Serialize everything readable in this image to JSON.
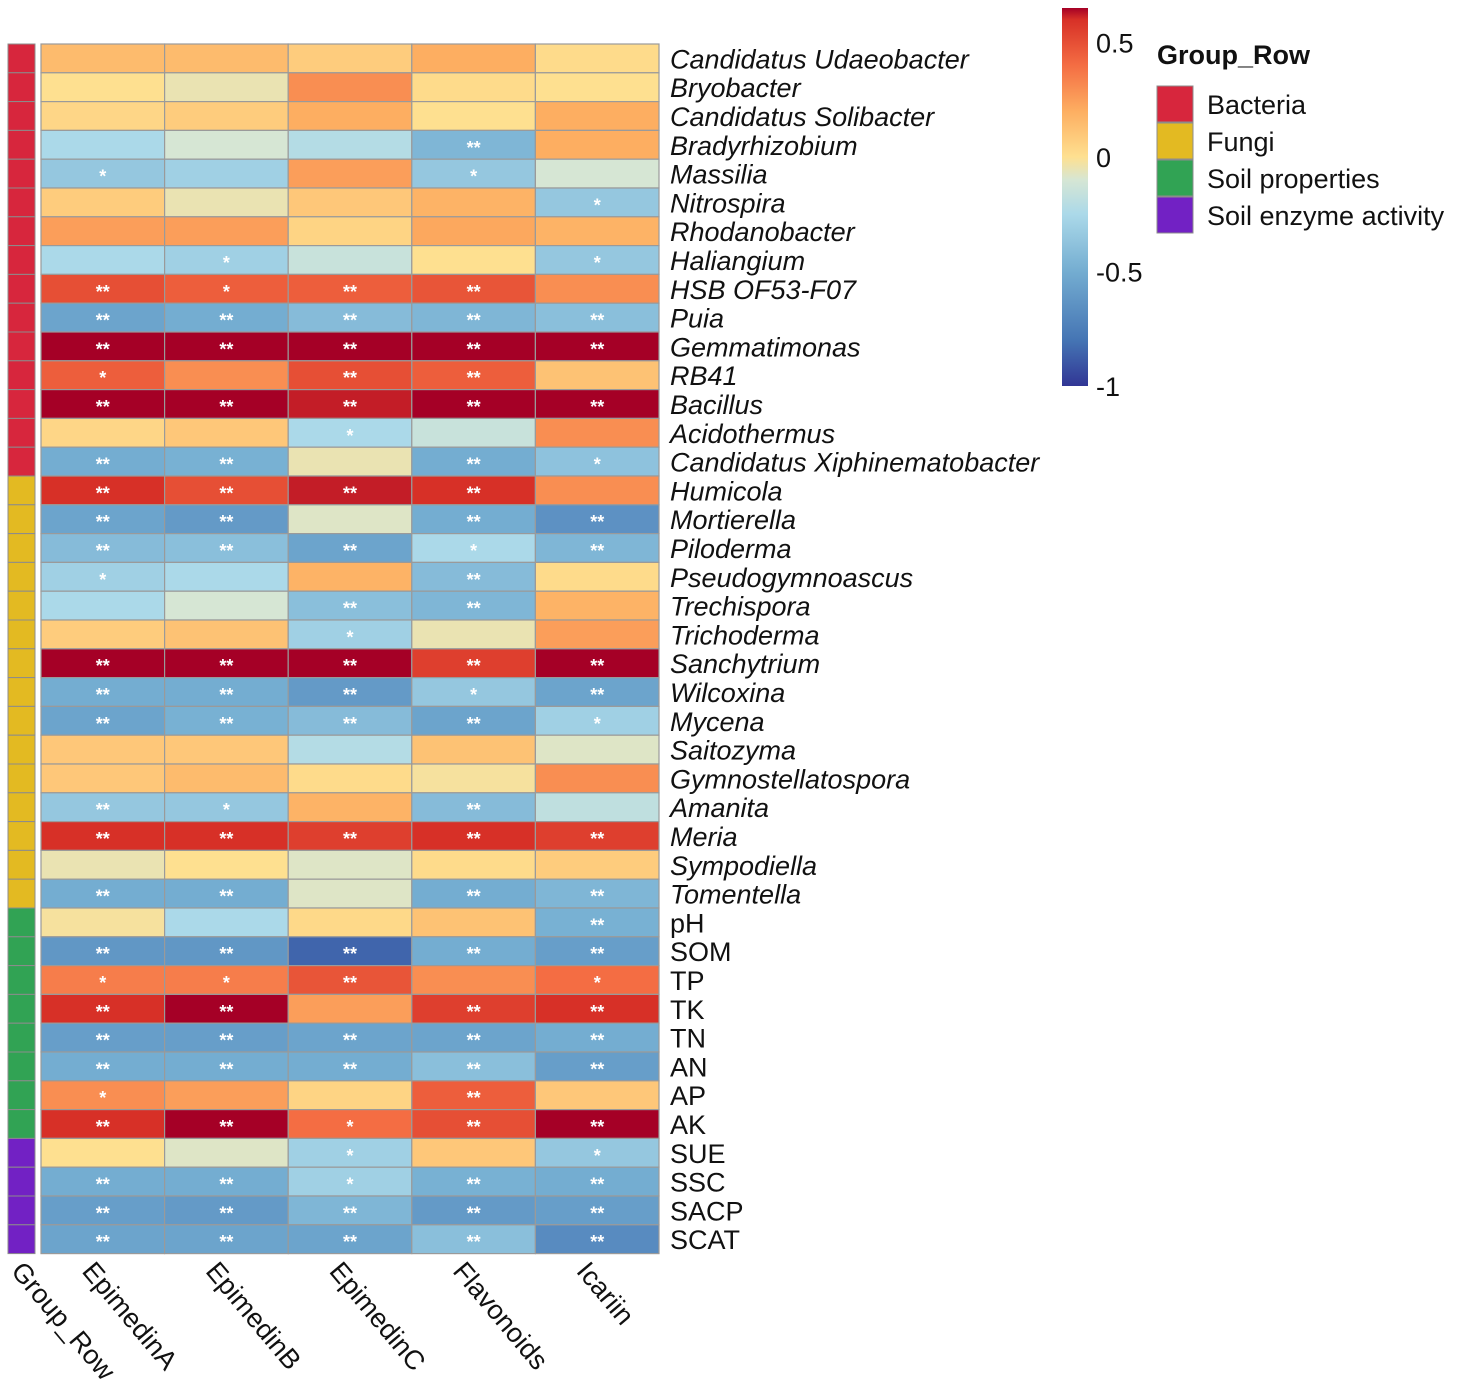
{
  "chart_data": {
    "type": "heatmap",
    "columns": [
      "EpimedinA",
      "EpimedinB",
      "EpimedinC",
      "Flavonoids",
      "Icariin"
    ],
    "annotation_column_label": "Group_Row",
    "rows": [
      {
        "name": "Candidatus Udaeobacter",
        "italic": true,
        "group": "Bacteria",
        "values": [
          0.15,
          0.15,
          0.08,
          0.2,
          0.02
        ],
        "sig": [
          "",
          "",
          "",
          "",
          ""
        ]
      },
      {
        "name": "Bryobacter",
        "italic": true,
        "group": "Bacteria",
        "values": [
          0.0,
          -0.05,
          0.3,
          0.02,
          0.0
        ],
        "sig": [
          "",
          "",
          "",
          "",
          ""
        ]
      },
      {
        "name": "Candidatus Solibacter",
        "italic": true,
        "group": "Bacteria",
        "values": [
          0.04,
          0.08,
          0.2,
          0.0,
          0.2
        ],
        "sig": [
          "",
          "",
          "",
          "",
          ""
        ]
      },
      {
        "name": "Bradyrhizobium",
        "italic": true,
        "group": "Bacteria",
        "values": [
          -0.25,
          -0.1,
          -0.22,
          -0.45,
          0.2
        ],
        "sig": [
          "",
          "",
          "",
          "**",
          ""
        ]
      },
      {
        "name": "Massilia",
        "italic": true,
        "group": "Bacteria",
        "values": [
          -0.35,
          -0.3,
          0.25,
          -0.35,
          -0.1
        ],
        "sig": [
          "*",
          "",
          "",
          "*",
          ""
        ]
      },
      {
        "name": "Nitrospira",
        "italic": true,
        "group": "Bacteria",
        "values": [
          0.08,
          -0.05,
          0.1,
          0.18,
          -0.35
        ],
        "sig": [
          "",
          "",
          "",
          "",
          "*"
        ]
      },
      {
        "name": "Rhodanobacter",
        "italic": true,
        "group": "Bacteria",
        "values": [
          0.25,
          0.25,
          0.05,
          0.22,
          0.18
        ],
        "sig": [
          "",
          "",
          "",
          "",
          ""
        ]
      },
      {
        "name": "Haliangium",
        "italic": true,
        "group": "Bacteria",
        "values": [
          -0.25,
          -0.3,
          -0.15,
          0.0,
          -0.35
        ],
        "sig": [
          "",
          "*",
          "",
          "",
          "*"
        ]
      },
      {
        "name": "HSB OF53-F07",
        "italic": true,
        "group": "Bacteria",
        "values": [
          0.5,
          0.45,
          0.45,
          0.48,
          0.3
        ],
        "sig": [
          "**",
          "*",
          "**",
          "**",
          ""
        ]
      },
      {
        "name": "Puia",
        "italic": true,
        "group": "Bacteria",
        "values": [
          -0.55,
          -0.5,
          -0.42,
          -0.45,
          -0.4
        ],
        "sig": [
          "**",
          "**",
          "**",
          "**",
          "**"
        ]
      },
      {
        "name": "Gemmatimonas",
        "italic": true,
        "group": "Bacteria",
        "values": [
          0.7,
          0.72,
          0.65,
          0.7,
          0.72
        ],
        "sig": [
          "**",
          "**",
          "**",
          "**",
          "**"
        ]
      },
      {
        "name": "RB41",
        "italic": true,
        "group": "Bacteria",
        "values": [
          0.45,
          0.3,
          0.5,
          0.45,
          0.12
        ],
        "sig": [
          "*",
          "",
          "**",
          "**",
          ""
        ]
      },
      {
        "name": "Bacillus",
        "italic": true,
        "group": "Bacteria",
        "values": [
          0.78,
          0.78,
          0.62,
          0.78,
          0.68
        ],
        "sig": [
          "**",
          "**",
          "**",
          "**",
          "**"
        ]
      },
      {
        "name": "Acidothermus",
        "italic": true,
        "group": "Bacteria",
        "values": [
          0.04,
          0.1,
          -0.25,
          -0.15,
          0.3
        ],
        "sig": [
          "",
          "",
          "*",
          "",
          ""
        ]
      },
      {
        "name": "Candidatus Xiphinematobacter",
        "italic": true,
        "group": "Bacteria",
        "values": [
          -0.5,
          -0.48,
          -0.05,
          -0.5,
          -0.38
        ],
        "sig": [
          "**",
          "**",
          "",
          "**",
          "*"
        ]
      },
      {
        "name": "Humicola",
        "italic": true,
        "group": "Fungi",
        "values": [
          0.6,
          0.5,
          0.62,
          0.6,
          0.3
        ],
        "sig": [
          "**",
          "**",
          "**",
          "**",
          ""
        ]
      },
      {
        "name": "Mortierella",
        "italic": true,
        "group": "Fungi",
        "values": [
          -0.55,
          -0.6,
          -0.08,
          -0.5,
          -0.65
        ],
        "sig": [
          "**",
          "**",
          "",
          "**",
          "**"
        ]
      },
      {
        "name": "Piloderma",
        "italic": true,
        "group": "Fungi",
        "values": [
          -0.42,
          -0.4,
          -0.55,
          -0.25,
          -0.45
        ],
        "sig": [
          "**",
          "**",
          "**",
          "*",
          "**"
        ]
      },
      {
        "name": "Pseudogymnoascus",
        "italic": true,
        "group": "Fungi",
        "values": [
          -0.3,
          -0.25,
          0.18,
          -0.42,
          0.02
        ],
        "sig": [
          "*",
          "",
          "",
          "**",
          ""
        ]
      },
      {
        "name": "Trechispora",
        "italic": true,
        "group": "Fungi",
        "values": [
          -0.25,
          -0.1,
          -0.4,
          -0.45,
          0.18
        ],
        "sig": [
          "",
          "",
          "**",
          "**",
          ""
        ]
      },
      {
        "name": "Trichoderma",
        "italic": true,
        "group": "Fungi",
        "values": [
          0.08,
          0.12,
          -0.3,
          -0.05,
          0.25
        ],
        "sig": [
          "",
          "",
          "*",
          "",
          ""
        ]
      },
      {
        "name": "Sanchytrium",
        "italic": true,
        "group": "Fungi",
        "values": [
          0.65,
          0.68,
          0.65,
          0.55,
          0.75
        ],
        "sig": [
          "**",
          "**",
          "**",
          "**",
          "**"
        ]
      },
      {
        "name": "Wilcoxina",
        "italic": true,
        "group": "Fungi",
        "values": [
          -0.5,
          -0.5,
          -0.6,
          -0.35,
          -0.55
        ],
        "sig": [
          "**",
          "**",
          "**",
          "*",
          "**"
        ]
      },
      {
        "name": "Mycena",
        "italic": true,
        "group": "Fungi",
        "values": [
          -0.55,
          -0.48,
          -0.42,
          -0.55,
          -0.3
        ],
        "sig": [
          "**",
          "**",
          "**",
          "**",
          "*"
        ]
      },
      {
        "name": "Saitozyma",
        "italic": true,
        "group": "Fungi",
        "values": [
          0.1,
          0.1,
          -0.22,
          0.12,
          -0.08
        ],
        "sig": [
          "",
          "",
          "",
          "",
          ""
        ]
      },
      {
        "name": "Gymnostellatospora",
        "italic": true,
        "group": "Fungi",
        "values": [
          0.1,
          0.15,
          0.02,
          -0.02,
          0.3
        ],
        "sig": [
          "",
          "",
          "",
          "",
          ""
        ]
      },
      {
        "name": "Amanita",
        "italic": true,
        "group": "Fungi",
        "values": [
          -0.35,
          -0.35,
          0.18,
          -0.42,
          -0.18
        ],
        "sig": [
          "**",
          "*",
          "",
          "**",
          ""
        ]
      },
      {
        "name": "Meria",
        "italic": true,
        "group": "Fungi",
        "values": [
          0.6,
          0.6,
          0.55,
          0.6,
          0.55
        ],
        "sig": [
          "**",
          "**",
          "**",
          "**",
          "**"
        ]
      },
      {
        "name": "Sympodiella",
        "italic": true,
        "group": "Fungi",
        "values": [
          -0.05,
          0.0,
          -0.08,
          0.02,
          0.08
        ],
        "sig": [
          "",
          "",
          "",
          "",
          ""
        ]
      },
      {
        "name": "Tomentella",
        "italic": true,
        "group": "Fungi",
        "values": [
          -0.5,
          -0.5,
          -0.08,
          -0.5,
          -0.45
        ],
        "sig": [
          "**",
          "**",
          "",
          "**",
          "**"
        ]
      },
      {
        "name": "pH",
        "italic": false,
        "group": "Soil properties",
        "values": [
          -0.02,
          -0.25,
          0.03,
          0.12,
          -0.48
        ],
        "sig": [
          "",
          "",
          "",
          "",
          "**"
        ]
      },
      {
        "name": "SOM",
        "italic": false,
        "group": "Soil properties",
        "values": [
          -0.62,
          -0.62,
          -0.85,
          -0.5,
          -0.58
        ],
        "sig": [
          "**",
          "**",
          "**",
          "**",
          "**"
        ]
      },
      {
        "name": "TP",
        "italic": false,
        "group": "Soil properties",
        "values": [
          0.35,
          0.35,
          0.48,
          0.3,
          0.4
        ],
        "sig": [
          "*",
          "*",
          "**",
          "",
          "*"
        ]
      },
      {
        "name": "TK",
        "italic": false,
        "group": "Soil properties",
        "values": [
          0.6,
          0.65,
          0.25,
          0.55,
          0.6
        ],
        "sig": [
          "**",
          "**",
          "",
          "**",
          "**"
        ]
      },
      {
        "name": "TN",
        "italic": false,
        "group": "Soil properties",
        "values": [
          -0.58,
          -0.58,
          -0.55,
          -0.55,
          -0.5
        ],
        "sig": [
          "**",
          "**",
          "**",
          "**",
          "**"
        ]
      },
      {
        "name": "AN",
        "italic": false,
        "group": "Soil properties",
        "values": [
          -0.5,
          -0.5,
          -0.5,
          -0.4,
          -0.58
        ],
        "sig": [
          "**",
          "**",
          "**",
          "**",
          "**"
        ]
      },
      {
        "name": "AP",
        "italic": false,
        "group": "Soil properties",
        "values": [
          0.3,
          0.25,
          0.05,
          0.45,
          0.1
        ],
        "sig": [
          "*",
          "",
          "",
          "**",
          ""
        ]
      },
      {
        "name": "AK",
        "italic": false,
        "group": "Soil properties",
        "values": [
          0.6,
          0.68,
          0.4,
          0.5,
          0.7
        ],
        "sig": [
          "**",
          "**",
          "*",
          "**",
          "**"
        ]
      },
      {
        "name": "SUE",
        "italic": false,
        "group": "Soil enzyme activity",
        "values": [
          0.0,
          -0.08,
          -0.3,
          0.1,
          -0.35
        ],
        "sig": [
          "",
          "",
          "*",
          "",
          "*"
        ]
      },
      {
        "name": "SSC",
        "italic": false,
        "group": "Soil enzyme activity",
        "values": [
          -0.5,
          -0.5,
          -0.3,
          -0.48,
          -0.5
        ],
        "sig": [
          "**",
          "**",
          "*",
          "**",
          "**"
        ]
      },
      {
        "name": "SACP",
        "italic": false,
        "group": "Soil enzyme activity",
        "values": [
          -0.58,
          -0.6,
          -0.45,
          -0.6,
          -0.58
        ],
        "sig": [
          "**",
          "**",
          "**",
          "**",
          "**"
        ]
      },
      {
        "name": "SCAT",
        "italic": false,
        "group": "Soil enzyme activity",
        "values": [
          -0.55,
          -0.55,
          -0.55,
          -0.4,
          -0.68
        ],
        "sig": [
          "**",
          "**",
          "**",
          "**",
          "**"
        ]
      }
    ],
    "groups": [
      {
        "name": "Bacteria",
        "color": "#D7263D"
      },
      {
        "name": "Fungi",
        "color": "#E3BA22"
      },
      {
        "name": "Soil properties",
        "color": "#31A354"
      },
      {
        "name": "Soil enzyme activity",
        "color": "#7221C4"
      }
    ],
    "legend": {
      "title": "Group_Row",
      "placement": "top-right"
    },
    "color_scale": {
      "domain": [
        -1,
        0.65
      ],
      "ticks": [
        0.5,
        0,
        -0.5,
        -1
      ],
      "tick_labels": [
        "0.5",
        "0",
        "-0.5",
        "-1"
      ],
      "palette": "RdYlBu-reversed",
      "stops": [
        {
          "value": -1.0,
          "color": "#313695"
        },
        {
          "value": -0.8,
          "color": "#4575B4"
        },
        {
          "value": -0.5,
          "color": "#74ADD1"
        },
        {
          "value": -0.25,
          "color": "#ABD9E9"
        },
        {
          "value": -0.1,
          "color": "#D6E6D4"
        },
        {
          "value": 0.0,
          "color": "#FEE090"
        },
        {
          "value": 0.2,
          "color": "#FDAE61"
        },
        {
          "value": 0.4,
          "color": "#F46D43"
        },
        {
          "value": 0.6,
          "color": "#D73027"
        },
        {
          "value": 0.65,
          "color": "#A50026"
        }
      ]
    }
  }
}
